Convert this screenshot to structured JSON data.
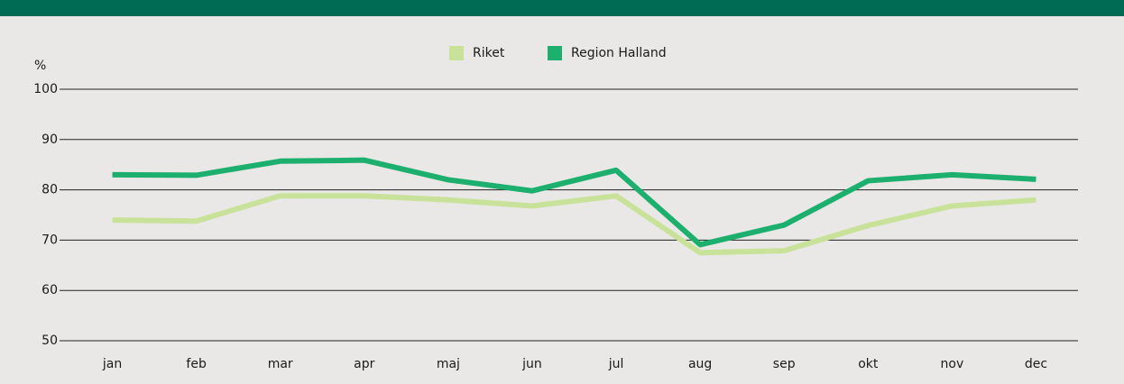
{
  "chart_data": {
    "type": "line",
    "y_label": "%",
    "categories": [
      "jan",
      "feb",
      "mar",
      "apr",
      "maj",
      "jun",
      "jul",
      "aug",
      "sep",
      "okt",
      "nov",
      "dec"
    ],
    "series": [
      {
        "name": "Riket",
        "color": "#c9e29a",
        "values": [
          74,
          73.8,
          78.8,
          78.8,
          78,
          76.8,
          78.8,
          67.5,
          67.9,
          72.9,
          76.8,
          78
        ]
      },
      {
        "name": "Region Halland",
        "color": "#1daf6e",
        "values": [
          83,
          82.9,
          85.7,
          85.9,
          82,
          79.8,
          83.9,
          69.1,
          73,
          81.8,
          83,
          82.1
        ]
      }
    ],
    "ylim": [
      50,
      100
    ],
    "yticks": [
      50,
      60,
      70,
      80,
      90,
      100
    ],
    "grid": true,
    "legend": "top"
  }
}
